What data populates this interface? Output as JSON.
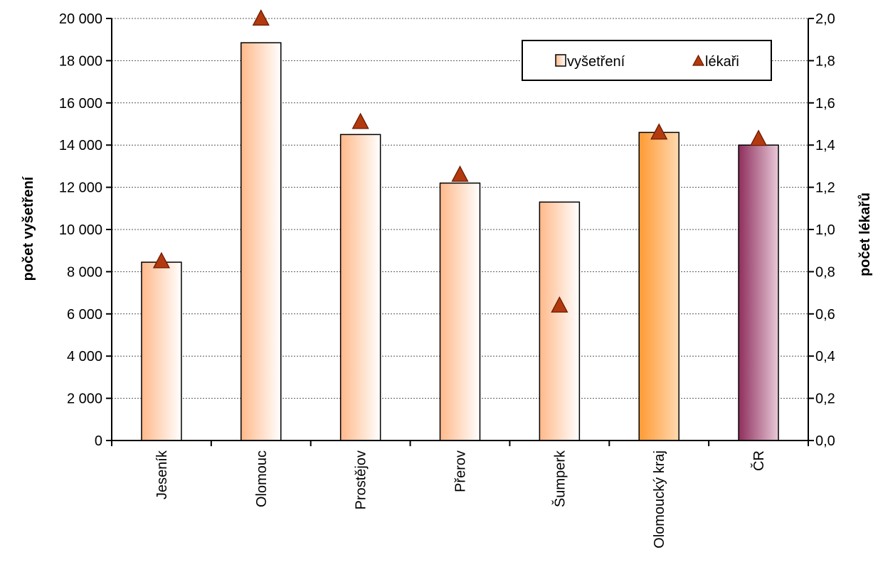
{
  "chart_data": {
    "type": "bar",
    "categories": [
      "Jeseník",
      "Olomouc",
      "Prostějov",
      "Přerov",
      "Šumperk",
      "Olomoucký kraj",
      "ČR"
    ],
    "series": [
      {
        "name": "vyšetření",
        "kind": "bar",
        "axis": "left",
        "values": [
          8450,
          18850,
          14500,
          12200,
          11300,
          14600,
          14000
        ]
      },
      {
        "name": "lékaři",
        "kind": "marker",
        "marker": "triangle",
        "axis": "right",
        "values": [
          0.85,
          2.0,
          1.51,
          1.26,
          0.64,
          1.46,
          1.43
        ]
      }
    ],
    "ylabel": "počet vyšetření",
    "y2label": "počet lékařů",
    "ylim": [
      0,
      20000
    ],
    "y2lim": [
      0,
      2.0
    ],
    "yticks": [
      "0",
      "2 000",
      "4 000",
      "6 000",
      "8 000",
      "10 000",
      "12 000",
      "14 000",
      "16 000",
      "18 000",
      "20 000"
    ],
    "y2ticks": [
      "0,0",
      "0,2",
      "0,4",
      "0,6",
      "0,8",
      "1,0",
      "1,2",
      "1,4",
      "1,6",
      "1,8",
      "2,0"
    ],
    "grid": true,
    "legend_position": "top-right",
    "colors": {
      "bar_default_start": "#FFB98A",
      "bar_default_end": "#FFFFFF",
      "bar_region_start": "#FF9A33",
      "bar_region_end": "#FFD9B0",
      "bar_country_start": "#8E2E5C",
      "bar_country_end": "#E8C8D8",
      "marker_fill": "#B33A0F",
      "marker_stroke": "#6B1A00"
    },
    "bar_styles": [
      "default",
      "default",
      "default",
      "default",
      "default",
      "region",
      "country"
    ]
  }
}
